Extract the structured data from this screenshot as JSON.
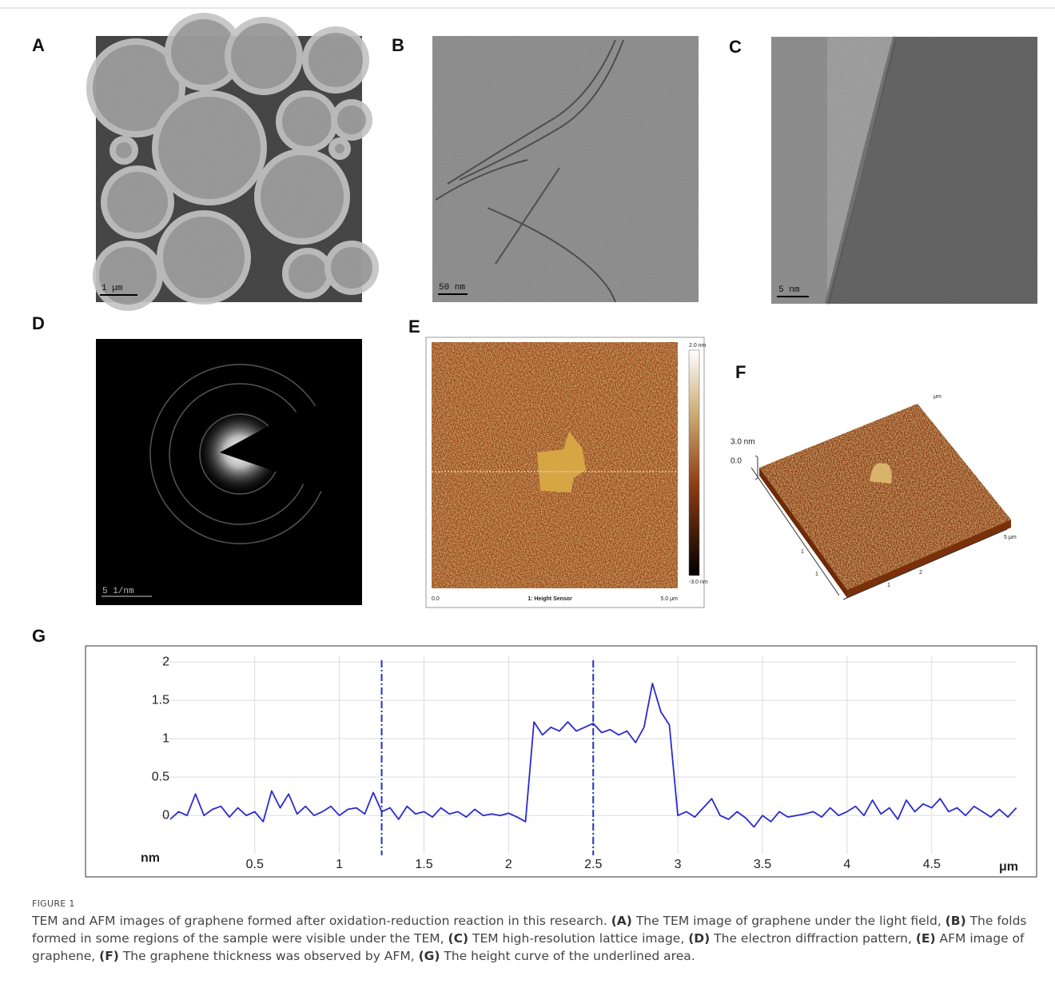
{
  "panels": [
    {
      "label": "A",
      "scale_bar": "1 μm"
    },
    {
      "label": "B",
      "scale_bar": "50 nm"
    },
    {
      "label": "C",
      "scale_bar": "5 nm"
    },
    {
      "label": "D",
      "scale_bar": "5 1/nm"
    },
    {
      "label": "E",
      "x_start": "0.0",
      "x_end": "5.0 μm",
      "footer": "1: Height Sensor",
      "scale_top": "2.0 nm",
      "scale_bottom": "-3.0 nm"
    },
    {
      "label": "F",
      "z_top": "3.0 nm",
      "z_zero": "0.0",
      "axis_unit": "μm",
      "axis_end": "5 μm"
    }
  ],
  "chart_data": {
    "type": "line",
    "label": "G",
    "y_label": "nm",
    "x_label": "μm",
    "color": "#2a2ad0",
    "grid": true,
    "xlim": [
      -0.5,
      5.12
    ],
    "ylim": [
      -0.8,
      2.21
    ],
    "xticks": [
      0.5,
      1,
      1.5,
      2,
      2.5,
      3,
      3.5,
      4,
      4.5
    ],
    "yticks": [
      0,
      0.5,
      1,
      1.5,
      2
    ],
    "markers": [
      1.25,
      2.5
    ],
    "x": [
      0,
      0.05,
      0.1,
      0.15,
      0.2,
      0.25,
      0.3,
      0.35,
      0.4,
      0.45,
      0.5,
      0.55,
      0.6,
      0.65,
      0.7,
      0.75,
      0.8,
      0.85,
      0.9,
      0.95,
      1,
      1.05,
      1.1,
      1.15,
      1.2,
      1.25,
      1.3,
      1.35,
      1.4,
      1.45,
      1.5,
      1.55,
      1.6,
      1.65,
      1.7,
      1.75,
      1.8,
      1.85,
      1.9,
      1.95,
      2,
      2.05,
      2.1,
      2.15,
      2.2,
      2.25,
      2.3,
      2.35,
      2.4,
      2.45,
      2.5,
      2.55,
      2.6,
      2.65,
      2.7,
      2.75,
      2.8,
      2.85,
      2.9,
      2.95,
      3,
      3.05,
      3.1,
      3.15,
      3.2,
      3.25,
      3.3,
      3.35,
      3.4,
      3.45,
      3.5,
      3.55,
      3.6,
      3.65,
      3.7,
      3.75,
      3.8,
      3.85,
      3.9,
      3.95,
      4,
      4.05,
      4.1,
      4.15,
      4.2,
      4.25,
      4.3,
      4.35,
      4.4,
      4.45,
      4.5,
      4.55,
      4.6,
      4.65,
      4.7,
      4.75,
      4.8,
      4.85,
      4.9,
      4.95,
      5
    ],
    "values": [
      -0.05,
      0.05,
      0,
      0.28,
      0,
      0.08,
      0.12,
      -0.02,
      0.1,
      0,
      0.05,
      -0.08,
      0.32,
      0.1,
      0.28,
      0.02,
      0.12,
      0,
      0.05,
      0.12,
      0,
      0.08,
      0.1,
      0.02,
      0.3,
      0.05,
      0.1,
      -0.05,
      0.12,
      0.02,
      0.05,
      -0.02,
      0.1,
      0.02,
      0.05,
      -0.02,
      0.08,
      0,
      0.02,
      0,
      0.03,
      -0.02,
      -0.08,
      1.22,
      1.05,
      1.15,
      1.1,
      1.22,
      1.1,
      1.15,
      1.2,
      1.08,
      1.12,
      1.05,
      1.1,
      0.95,
      1.15,
      1.72,
      1.35,
      1.18,
      0,
      0.05,
      -0.02,
      0.1,
      0.22,
      0,
      -0.05,
      0.05,
      -0.03,
      -0.15,
      0,
      -0.08,
      0.05,
      -0.02,
      0,
      0.02,
      0.05,
      -0.02,
      0.1,
      0,
      0.05,
      0.12,
      0,
      0.2,
      0.02,
      0.1,
      -0.05,
      0.2,
      0.05,
      0.15,
      0.1,
      0.22,
      0.05,
      0.1,
      0,
      0.12,
      0.05,
      -0.02,
      0.08,
      -0.02,
      0.1
    ]
  },
  "caption": {
    "label": "FIGURE 1",
    "parts": [
      {
        "text": "TEM and AFM images of graphene formed after oxidation-reduction reaction in this research. "
      },
      {
        "text": "(A)",
        "bold": true
      },
      {
        "text": " The TEM image of graphene under the light field, "
      },
      {
        "text": "(B)",
        "bold": true
      },
      {
        "text": " The folds formed in some regions of the sample were visible under the TEM, "
      },
      {
        "text": "(C)",
        "bold": true
      },
      {
        "text": " TEM high-resolution lattice image, "
      },
      {
        "text": "(D)",
        "bold": true
      },
      {
        "text": " The electron diffraction pattern, "
      },
      {
        "text": "(E)",
        "bold": true
      },
      {
        "text": " AFM image of graphene, "
      },
      {
        "text": "(F)",
        "bold": true
      },
      {
        "text": " The graphene thickness was observed by AFM, "
      },
      {
        "text": "(G)",
        "bold": true
      },
      {
        "text": " The height curve of the underlined area."
      }
    ]
  }
}
